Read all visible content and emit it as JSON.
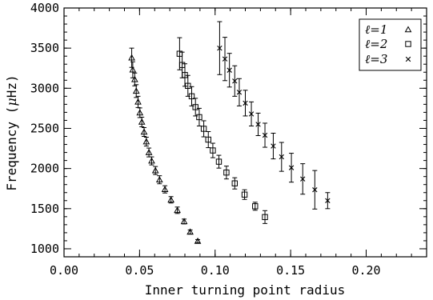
{
  "chart_data": {
    "type": "scatter",
    "title": "",
    "xlabel": "Inner turning point radius",
    "ylabel_prefix": "Frequency (",
    "ylabel_mu": "μ",
    "ylabel_suffix": "Hz)",
    "xlim": [
      0.0,
      0.24
    ],
    "ylim": [
      900,
      4000
    ],
    "x_ticks": [
      0.0,
      0.05,
      0.1,
      0.15,
      0.2
    ],
    "x_tick_labels": [
      "0.00",
      "0.05",
      "0.10",
      "0.15",
      "0.20"
    ],
    "y_ticks": [
      1000,
      1500,
      2000,
      2500,
      3000,
      3500,
      4000
    ],
    "y_tick_labels": [
      "1000",
      "1500",
      "2000",
      "2500",
      "3000",
      "3500",
      "4000"
    ],
    "grid": false,
    "legend_position": "top-right",
    "series": [
      {
        "name": "ℓ=1",
        "legend_name": "ℓ=1",
        "marker": "triangle",
        "points": [
          {
            "x": 0.0448,
            "y": 3380,
            "err": 120
          },
          {
            "x": 0.0455,
            "y": 3230,
            "err": 100
          },
          {
            "x": 0.0468,
            "y": 3110,
            "err": 80
          },
          {
            "x": 0.0478,
            "y": 2965,
            "err": 80
          },
          {
            "x": 0.049,
            "y": 2830,
            "err": 70
          },
          {
            "x": 0.0502,
            "y": 2695,
            "err": 60
          },
          {
            "x": 0.0515,
            "y": 2580,
            "err": 60
          },
          {
            "x": 0.053,
            "y": 2455,
            "err": 55
          },
          {
            "x": 0.0545,
            "y": 2335,
            "err": 55
          },
          {
            "x": 0.0562,
            "y": 2200,
            "err": 55
          },
          {
            "x": 0.058,
            "y": 2095,
            "err": 50
          },
          {
            "x": 0.0605,
            "y": 1975,
            "err": 50
          },
          {
            "x": 0.0632,
            "y": 1860,
            "err": 50
          },
          {
            "x": 0.0668,
            "y": 1740,
            "err": 45
          },
          {
            "x": 0.0708,
            "y": 1610,
            "err": 40
          },
          {
            "x": 0.075,
            "y": 1480,
            "err": 40
          },
          {
            "x": 0.0795,
            "y": 1340,
            "err": 30
          },
          {
            "x": 0.0835,
            "y": 1210,
            "err": 25
          },
          {
            "x": 0.0885,
            "y": 1095,
            "err": 20
          }
        ]
      },
      {
        "name": "ℓ=2",
        "legend_name": "ℓ=2",
        "marker": "square",
        "points": [
          {
            "x": 0.0765,
            "y": 3430,
            "err": 200
          },
          {
            "x": 0.0782,
            "y": 3290,
            "err": 160
          },
          {
            "x": 0.08,
            "y": 3165,
            "err": 140
          },
          {
            "x": 0.082,
            "y": 3030,
            "err": 130
          },
          {
            "x": 0.0845,
            "y": 2900,
            "err": 120
          },
          {
            "x": 0.087,
            "y": 2765,
            "err": 110
          },
          {
            "x": 0.0895,
            "y": 2640,
            "err": 110
          },
          {
            "x": 0.0925,
            "y": 2495,
            "err": 100
          },
          {
            "x": 0.0955,
            "y": 2360,
            "err": 100
          },
          {
            "x": 0.0985,
            "y": 2225,
            "err": 90
          },
          {
            "x": 0.1025,
            "y": 2085,
            "err": 80
          },
          {
            "x": 0.1075,
            "y": 1950,
            "err": 80
          },
          {
            "x": 0.113,
            "y": 1815,
            "err": 70
          },
          {
            "x": 0.1195,
            "y": 1675,
            "err": 60
          },
          {
            "x": 0.1265,
            "y": 1530,
            "err": 50
          },
          {
            "x": 0.133,
            "y": 1395,
            "err": 80
          }
        ]
      },
      {
        "name": "ℓ=3",
        "legend_name": "ℓ=3",
        "marker": "cross",
        "points": [
          {
            "x": 0.103,
            "y": 3500,
            "err": 330
          },
          {
            "x": 0.1065,
            "y": 3365,
            "err": 270
          },
          {
            "x": 0.1095,
            "y": 3225,
            "err": 210
          },
          {
            "x": 0.113,
            "y": 3090,
            "err": 190
          },
          {
            "x": 0.116,
            "y": 2950,
            "err": 170
          },
          {
            "x": 0.12,
            "y": 2815,
            "err": 160
          },
          {
            "x": 0.124,
            "y": 2680,
            "err": 150
          },
          {
            "x": 0.1285,
            "y": 2550,
            "err": 140
          },
          {
            "x": 0.133,
            "y": 2415,
            "err": 150
          },
          {
            "x": 0.1385,
            "y": 2280,
            "err": 160
          },
          {
            "x": 0.144,
            "y": 2145,
            "err": 180
          },
          {
            "x": 0.1505,
            "y": 2010,
            "err": 180
          },
          {
            "x": 0.158,
            "y": 1870,
            "err": 190
          },
          {
            "x": 0.166,
            "y": 1735,
            "err": 240
          },
          {
            "x": 0.1745,
            "y": 1600,
            "err": 100
          }
        ]
      }
    ]
  }
}
